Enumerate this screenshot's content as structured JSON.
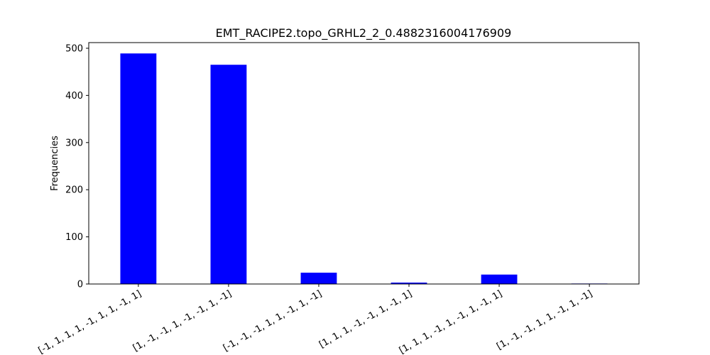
{
  "chart_data": {
    "type": "bar",
    "title": "EMT_RACIPE2.topo_GRHL2_2_0.4882316004176909",
    "xlabel": "",
    "ylabel": "Frequencies",
    "categories": [
      "[-1, 1, 1, 1, -1, 1, 1, -1, 1]",
      "[1, -1, -1, 1, -1, -1, 1, -1]",
      "[-1, -1, -1, 1, 1, -1, 1, -1]",
      "[1, 1, 1, -1, -1, 1, -1, 1]",
      "[1, 1, 1, -1, 1, -1, 1, -1, 1]",
      "[1, -1, -1, 1, 1, -1, 1, -1]"
    ],
    "values": [
      489,
      465,
      24,
      3,
      20,
      1
    ],
    "ylim": [
      0,
      512
    ],
    "yticks": [
      0,
      100,
      200,
      300,
      400,
      500
    ],
    "bar_color": "#0000ff",
    "grid": false,
    "legend": "none"
  }
}
